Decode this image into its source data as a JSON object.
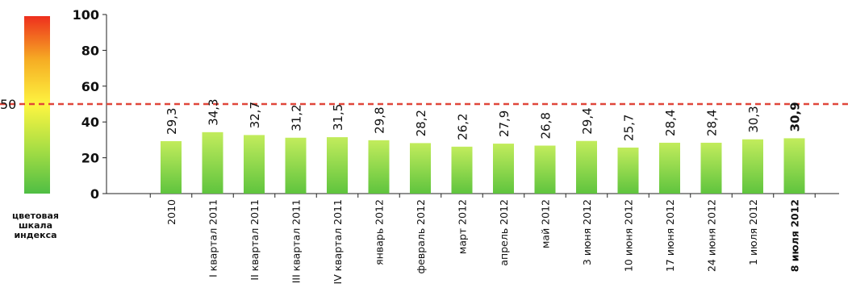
{
  "chart_data": {
    "type": "bar",
    "categories": [
      "2010",
      "I квартал 2011",
      "II квартал 2011",
      "III квартал 2011",
      "IV квартал 2011",
      "январь 2012",
      "февраль 2012",
      "март 2012",
      "апрель 2012",
      "май 2012",
      "3 июня 2012",
      "10 июня 2012",
      "17 июня 2012",
      "24 июня 2012",
      "1 июля 2012",
      "8 июля 2012"
    ],
    "values": [
      29.3,
      34.3,
      32.7,
      31.2,
      31.5,
      29.8,
      28.2,
      26.2,
      27.9,
      26.8,
      29.4,
      25.7,
      28.4,
      28.4,
      30.3,
      30.9
    ],
    "value_labels": [
      "29,3",
      "34,3",
      "32,7",
      "31,2",
      "31,5",
      "29,8",
      "28,2",
      "26,2",
      "27,9",
      "26,8",
      "29,4",
      "25,7",
      "28,4",
      "28,4",
      "30,3",
      "30,9"
    ],
    "highlight_index": 15,
    "ylim": [
      0,
      100
    ],
    "yticks": [
      0,
      20,
      40,
      60,
      80,
      100
    ],
    "reference_line": {
      "value": 50,
      "label": "50",
      "style": "dashed",
      "color": "#e0463a"
    },
    "bar_colors": {
      "top": "#c2ec5c",
      "bottom": "#5fc43e"
    },
    "color_scale": {
      "label": [
        "цветовая",
        "шкала",
        "индекса"
      ],
      "colors": [
        "#ee2f1d",
        "#f6ae24",
        "#fdf541",
        "#a7de44",
        "#4fbe44"
      ]
    },
    "grid": false,
    "legend": "none"
  }
}
